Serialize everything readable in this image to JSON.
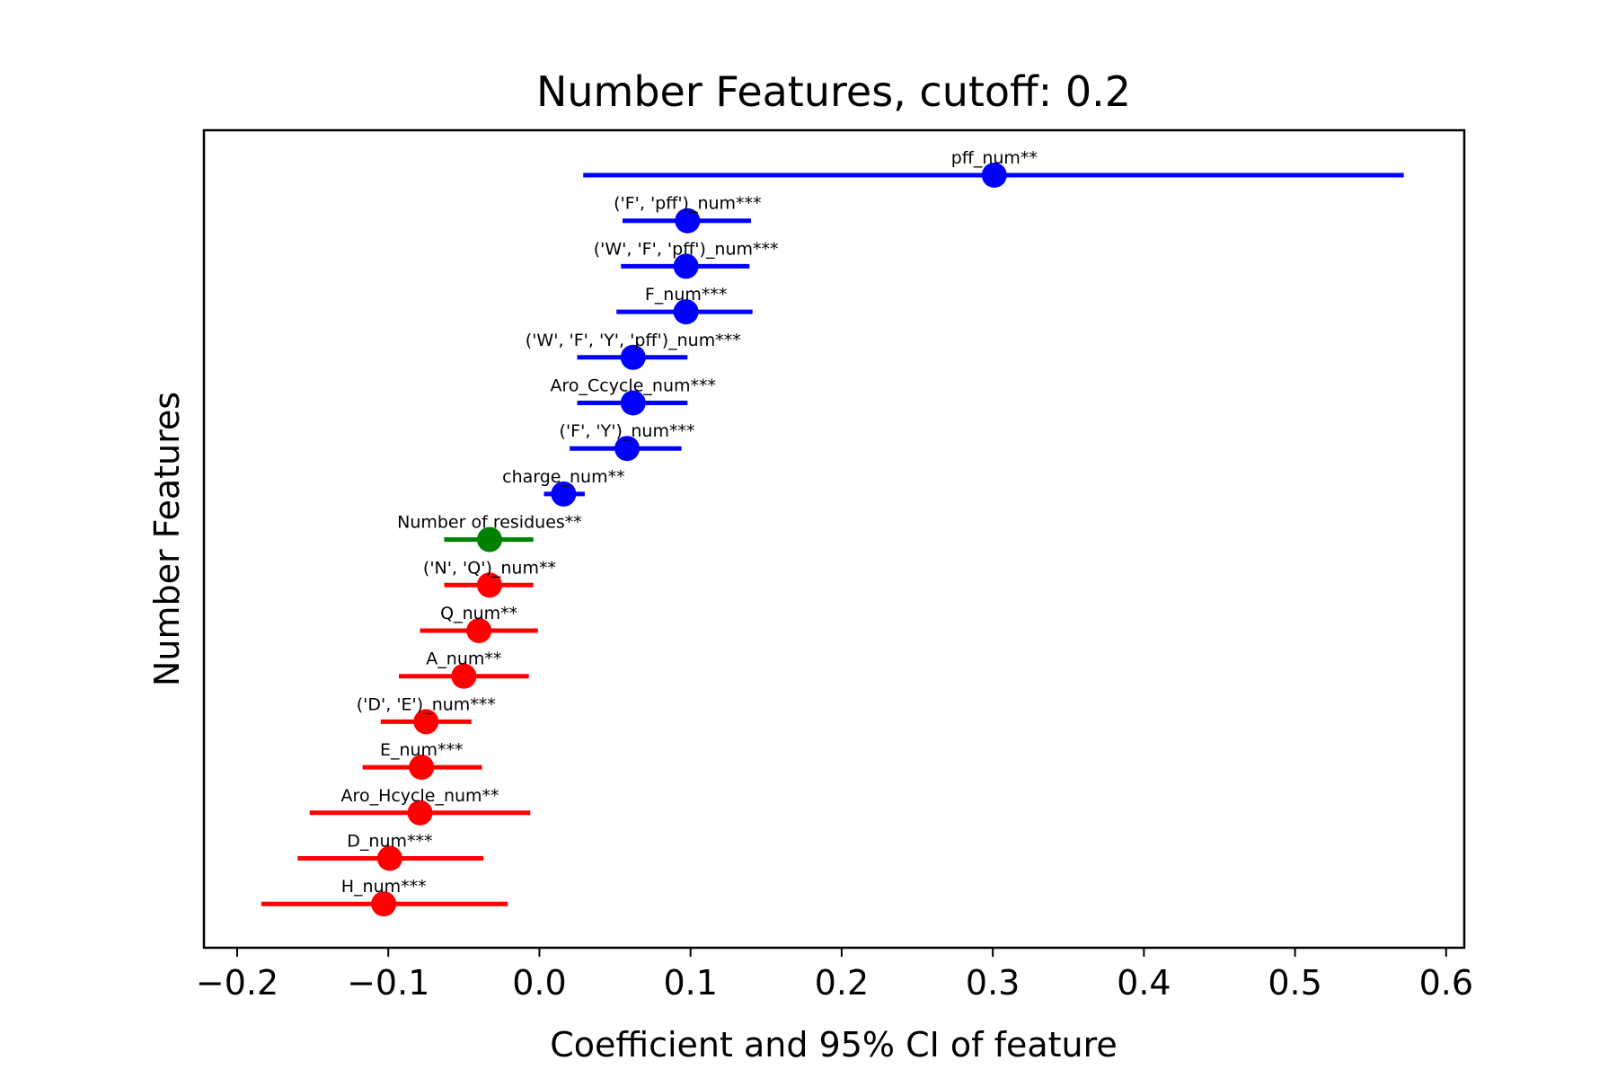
{
  "chart_data": {
    "type": "scatter",
    "title": "Number Features, cutoff: 0.2",
    "xlabel": "Coefficient and 95% CI of feature",
    "ylabel": "Number Features",
    "xlim": [
      -0.222,
      0.612
    ],
    "xticks": [
      -0.2,
      -0.1,
      0.0,
      0.1,
      0.2,
      0.3,
      0.4,
      0.5,
      0.6
    ],
    "xtick_labels": [
      "−0.2",
      "−0.1",
      "0.0",
      "0.1",
      "0.2",
      "0.3",
      "0.4",
      "0.5",
      "0.6"
    ],
    "grid": false,
    "colors": {
      "positive": "#0000ff",
      "neutral": "#008000",
      "negative": "#ff0000"
    },
    "points": [
      {
        "label": "pff_num**",
        "coef": 0.301,
        "ci": [
          0.029,
          0.572
        ],
        "color": "#0000ff"
      },
      {
        "label": "('F', 'pff')_num***",
        "coef": 0.098,
        "ci": [
          0.055,
          0.14
        ],
        "color": "#0000ff"
      },
      {
        "label": "('W', 'F', 'pff')_num***",
        "coef": 0.097,
        "ci": [
          0.054,
          0.139
        ],
        "color": "#0000ff"
      },
      {
        "label": "F_num***",
        "coef": 0.097,
        "ci": [
          0.051,
          0.141
        ],
        "color": "#0000ff"
      },
      {
        "label": "('W', 'F', 'Y', 'pff')_num***",
        "coef": 0.062,
        "ci": [
          0.025,
          0.098
        ],
        "color": "#0000ff"
      },
      {
        "label": "Aro_Ccycle_num***",
        "coef": 0.062,
        "ci": [
          0.025,
          0.098
        ],
        "color": "#0000ff"
      },
      {
        "label": "('F', 'Y')_num***",
        "coef": 0.058,
        "ci": [
          0.02,
          0.094
        ],
        "color": "#0000ff"
      },
      {
        "label": "charge_num**",
        "coef": 0.016,
        "ci": [
          0.003,
          0.03
        ],
        "color": "#0000ff"
      },
      {
        "label": "Number of residues**",
        "coef": -0.033,
        "ci": [
          -0.063,
          -0.004
        ],
        "color": "#008000"
      },
      {
        "label": "('N', 'Q')_num**",
        "coef": -0.033,
        "ci": [
          -0.063,
          -0.004
        ],
        "color": "#ff0000"
      },
      {
        "label": "Q_num**",
        "coef": -0.04,
        "ci": [
          -0.079,
          -0.001
        ],
        "color": "#ff0000"
      },
      {
        "label": "A_num**",
        "coef": -0.05,
        "ci": [
          -0.093,
          -0.007
        ],
        "color": "#ff0000"
      },
      {
        "label": "('D', 'E')_num***",
        "coef": -0.075,
        "ci": [
          -0.105,
          -0.045
        ],
        "color": "#ff0000"
      },
      {
        "label": "E_num***",
        "coef": -0.078,
        "ci": [
          -0.117,
          -0.038
        ],
        "color": "#ff0000"
      },
      {
        "label": "Aro_Hcycle_num**",
        "coef": -0.079,
        "ci": [
          -0.152,
          -0.006
        ],
        "color": "#ff0000"
      },
      {
        "label": "D_num***",
        "coef": -0.099,
        "ci": [
          -0.16,
          -0.037
        ],
        "color": "#ff0000"
      },
      {
        "label": "H_num***",
        "coef": -0.103,
        "ci": [
          -0.184,
          -0.021
        ],
        "color": "#ff0000"
      }
    ]
  }
}
